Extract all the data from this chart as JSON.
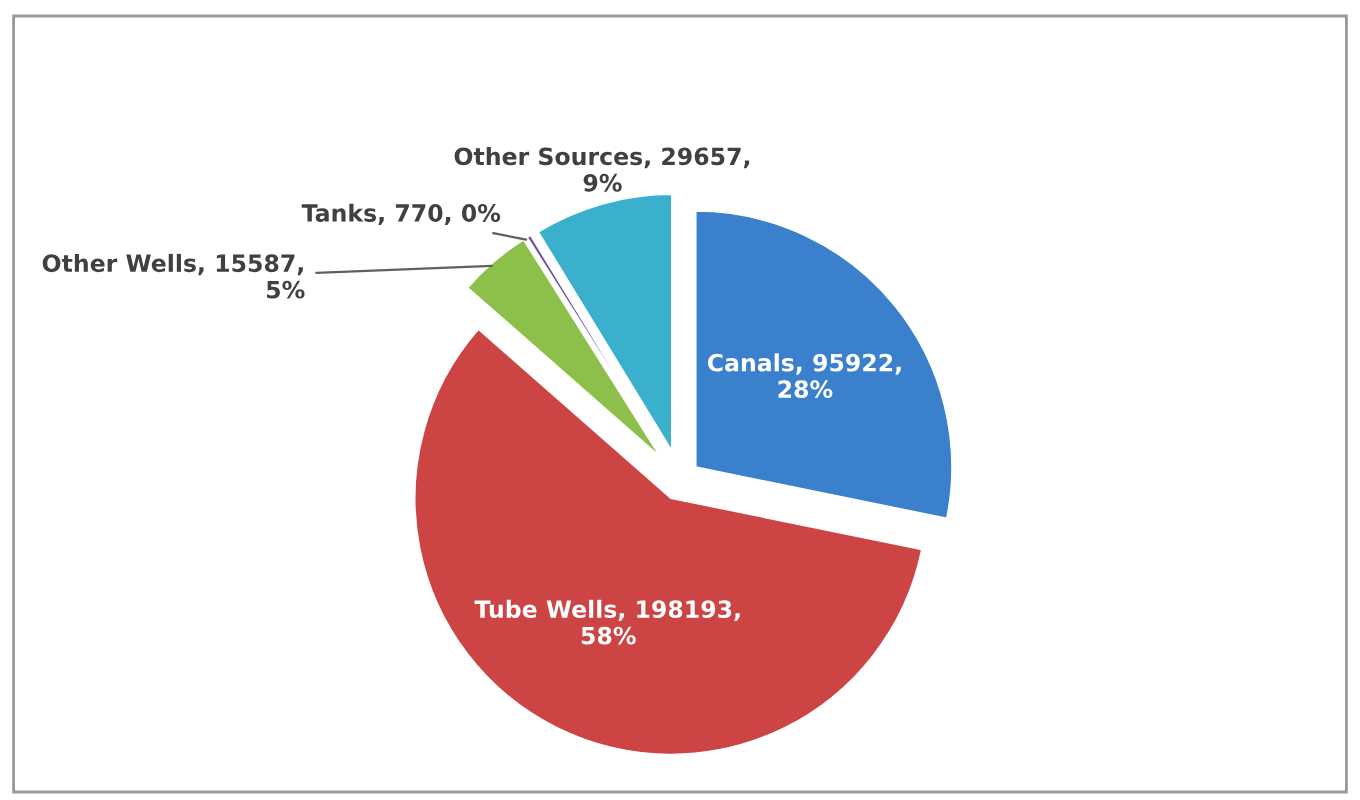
{
  "chart_data": {
    "type": "pie",
    "categories": [
      "Canals",
      "Tube Wells",
      "Other Wells",
      "Tanks",
      "Other Sources"
    ],
    "values": [
      95922,
      198193,
      15587,
      770,
      29657
    ],
    "colors": [
      "#3a80cc",
      "#cc4444",
      "#8cc04a",
      "#6b4d9c",
      "#3bb0cc"
    ],
    "value_labels": [
      "95922, 28%",
      "198193, 58%",
      "15587, 5%",
      "770, 0%",
      "29657, 9%"
    ],
    "legend": false
  }
}
